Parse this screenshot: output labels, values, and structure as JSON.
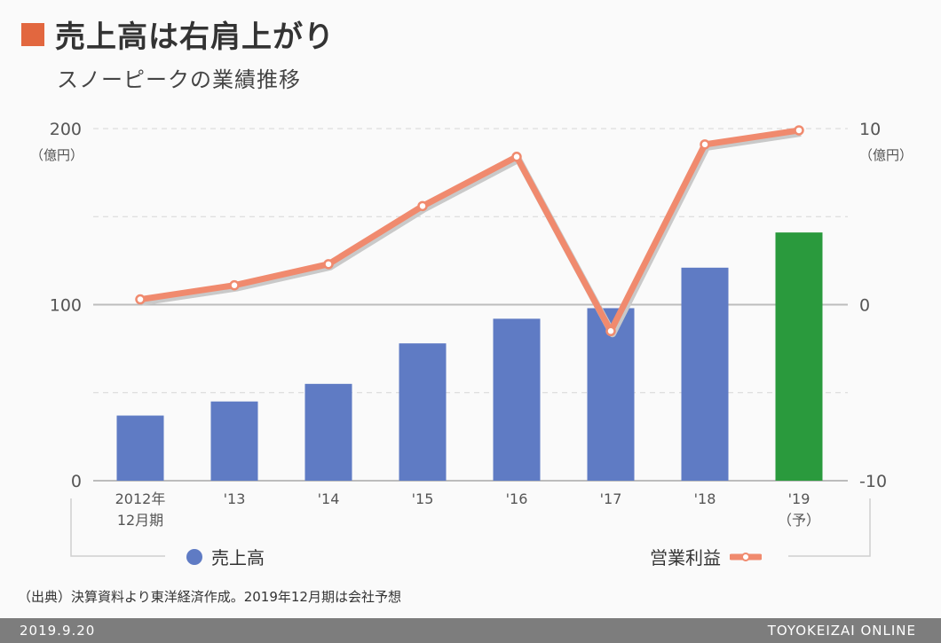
{
  "header": {
    "title": "売上高は右肩上がり",
    "subtitle": "スノーピークの業績推移"
  },
  "colors": {
    "title_mark": "#e2673f",
    "bar": "#5f7bc4",
    "bar_forecast": "#2a9a3d",
    "line": "#f08a6e"
  },
  "chart_data": {
    "type": "bar",
    "categories": [
      "2012年\n12月期",
      "'13",
      "'14",
      "'15",
      "'16",
      "'17",
      "'18",
      "'19\n（予）"
    ],
    "series": [
      {
        "name": "売上高",
        "type": "bar",
        "axis": "left",
        "values": [
          37,
          45,
          55,
          78,
          92,
          98,
          121,
          141
        ]
      },
      {
        "name": "営業利益",
        "type": "line",
        "axis": "right",
        "values": [
          0.3,
          1.1,
          2.3,
          5.6,
          8.4,
          -1.5,
          9.1,
          9.9
        ]
      }
    ],
    "left_axis": {
      "ticks": [
        "200",
        "100",
        "0"
      ],
      "unit": "（億円）",
      "ylim": [
        0,
        200
      ]
    },
    "right_axis": {
      "ticks": [
        "10",
        "0",
        "-10"
      ],
      "unit": "（億円）",
      "ylim": [
        -10,
        10
      ]
    },
    "forecast_index": 7,
    "legend": {
      "sales": "売上高",
      "profit": "営業利益"
    }
  },
  "source": "（出典）決算資料より東洋経済作成。2019年12月期は会社予想",
  "footer": {
    "date": "2019.9.20",
    "brand": "TOYOKEIZAI ONLINE"
  }
}
